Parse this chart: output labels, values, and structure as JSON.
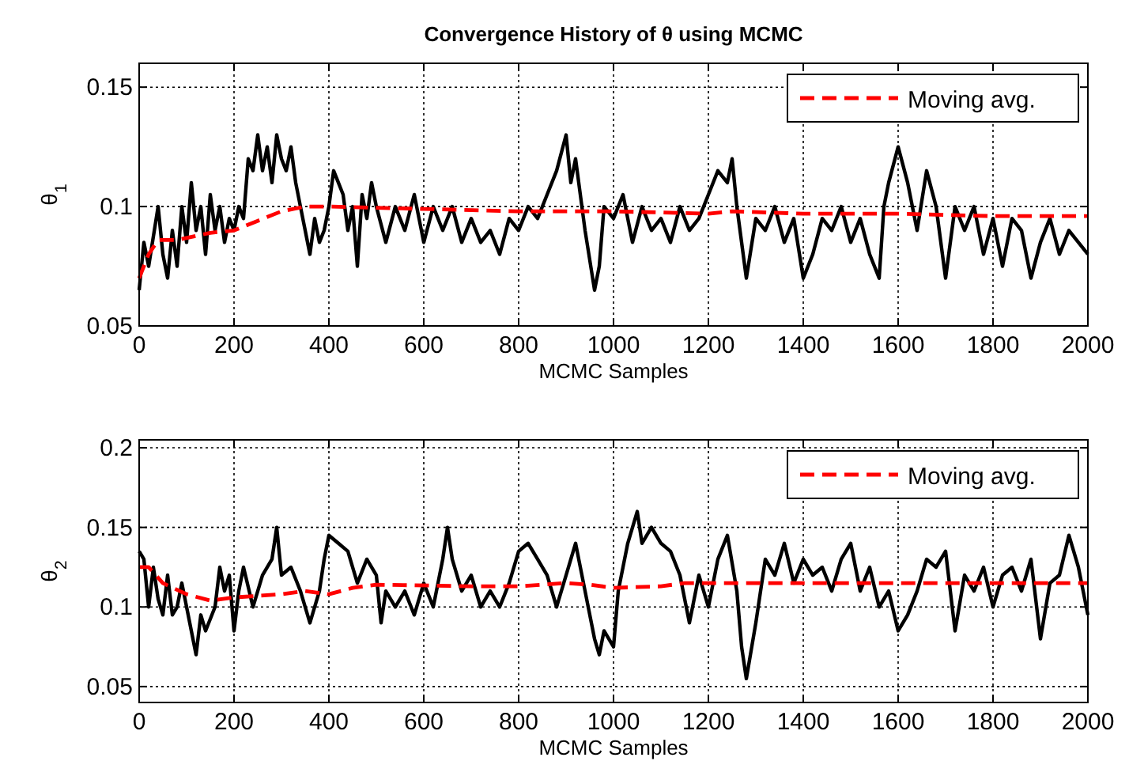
{
  "chart_data": [
    {
      "type": "line",
      "title": "Convergence History of θ using MCMC",
      "xlabel": "MCMC Samples",
      "ylabel": "θ$_{1}$",
      "xlim": [
        0,
        2000
      ],
      "xticks": [
        0,
        200,
        400,
        600,
        800,
        1000,
        1200,
        1400,
        1600,
        1800,
        2000
      ],
      "ylim": [
        0.05,
        0.16
      ],
      "yticks": [
        0.05,
        0.1,
        0.15
      ],
      "grid": true,
      "legend": "top right",
      "series": [
        {
          "color": "#000000",
          "line_style": "solid",
          "x": [
            0,
            10,
            20,
            40,
            50,
            60,
            70,
            80,
            90,
            100,
            110,
            120,
            130,
            140,
            150,
            160,
            170,
            180,
            190,
            200,
            210,
            220,
            230,
            240,
            250,
            260,
            270,
            280,
            290,
            300,
            310,
            320,
            330,
            340,
            350,
            360,
            370,
            380,
            390,
            400,
            410,
            420,
            430,
            440,
            450,
            460,
            470,
            480,
            490,
            500,
            520,
            540,
            560,
            580,
            600,
            620,
            640,
            660,
            680,
            700,
            720,
            740,
            760,
            780,
            800,
            820,
            840,
            860,
            880,
            900,
            910,
            920,
            940,
            960,
            970,
            980,
            1000,
            1020,
            1040,
            1060,
            1080,
            1100,
            1120,
            1140,
            1160,
            1180,
            1200,
            1220,
            1240,
            1250,
            1260,
            1280,
            1300,
            1320,
            1340,
            1360,
            1380,
            1400,
            1420,
            1440,
            1460,
            1480,
            1500,
            1520,
            1540,
            1560,
            1570,
            1580,
            1600,
            1620,
            1640,
            1660,
            1680,
            1700,
            1720,
            1740,
            1760,
            1780,
            1800,
            1820,
            1840,
            1860,
            1880,
            1900,
            1920,
            1940,
            1960,
            1980,
            2000
          ],
          "values": [
            0.065,
            0.085,
            0.075,
            0.1,
            0.08,
            0.07,
            0.09,
            0.075,
            0.1,
            0.085,
            0.11,
            0.09,
            0.1,
            0.08,
            0.105,
            0.09,
            0.1,
            0.085,
            0.095,
            0.09,
            0.1,
            0.095,
            0.12,
            0.115,
            0.13,
            0.115,
            0.125,
            0.11,
            0.13,
            0.12,
            0.115,
            0.125,
            0.11,
            0.1,
            0.09,
            0.08,
            0.095,
            0.085,
            0.09,
            0.1,
            0.115,
            0.11,
            0.105,
            0.09,
            0.1,
            0.075,
            0.105,
            0.095,
            0.11,
            0.1,
            0.085,
            0.1,
            0.09,
            0.105,
            0.085,
            0.1,
            0.09,
            0.1,
            0.085,
            0.095,
            0.085,
            0.09,
            0.08,
            0.095,
            0.09,
            0.1,
            0.095,
            0.105,
            0.115,
            0.13,
            0.11,
            0.12,
            0.09,
            0.065,
            0.075,
            0.1,
            0.095,
            0.105,
            0.085,
            0.1,
            0.09,
            0.095,
            0.085,
            0.1,
            0.09,
            0.095,
            0.105,
            0.115,
            0.11,
            0.12,
            0.1,
            0.07,
            0.095,
            0.09,
            0.1,
            0.085,
            0.095,
            0.07,
            0.08,
            0.095,
            0.09,
            0.1,
            0.085,
            0.095,
            0.08,
            0.07,
            0.1,
            0.11,
            0.125,
            0.11,
            0.09,
            0.115,
            0.1,
            0.07,
            0.1,
            0.09,
            0.1,
            0.08,
            0.095,
            0.075,
            0.095,
            0.09,
            0.07,
            0.085,
            0.095,
            0.08,
            0.09,
            0.085,
            0.08
          ]
        },
        {
          "name": "Moving avg.",
          "color": "#ff0000",
          "line_style": "dashed",
          "x": [
            0,
            20,
            40,
            80,
            150,
            200,
            250,
            300,
            350,
            400,
            600,
            800,
            1000,
            1200,
            1250,
            1400,
            1600,
            1800,
            2000
          ],
          "values": [
            0.07,
            0.08,
            0.086,
            0.086,
            0.089,
            0.09,
            0.094,
            0.098,
            0.1,
            0.1,
            0.099,
            0.098,
            0.098,
            0.097,
            0.098,
            0.097,
            0.097,
            0.096,
            0.096
          ]
        }
      ]
    },
    {
      "type": "line",
      "xlabel": "MCMC Samples",
      "ylabel": "θ$_{2}$",
      "xlim": [
        0,
        2000
      ],
      "xticks": [
        0,
        200,
        400,
        600,
        800,
        1000,
        1200,
        1400,
        1600,
        1800,
        2000
      ],
      "ylim": [
        0.04,
        0.205
      ],
      "yticks": [
        0.05,
        0.1,
        0.15,
        0.2
      ],
      "grid": true,
      "legend": "top right",
      "series": [
        {
          "color": "#000000",
          "line_style": "solid",
          "x": [
            0,
            10,
            20,
            30,
            40,
            50,
            60,
            70,
            80,
            90,
            100,
            110,
            120,
            130,
            140,
            160,
            170,
            180,
            190,
            200,
            210,
            220,
            240,
            260,
            280,
            290,
            300,
            320,
            340,
            360,
            380,
            390,
            400,
            420,
            440,
            460,
            480,
            500,
            510,
            520,
            540,
            560,
            580,
            600,
            620,
            640,
            650,
            660,
            680,
            700,
            720,
            740,
            760,
            780,
            800,
            820,
            840,
            860,
            880,
            900,
            920,
            940,
            960,
            970,
            980,
            1000,
            1010,
            1030,
            1050,
            1060,
            1080,
            1100,
            1120,
            1140,
            1160,
            1180,
            1200,
            1220,
            1240,
            1260,
            1270,
            1280,
            1300,
            1320,
            1340,
            1360,
            1380,
            1400,
            1420,
            1440,
            1460,
            1480,
            1500,
            1520,
            1540,
            1560,
            1580,
            1600,
            1620,
            1640,
            1660,
            1680,
            1700,
            1720,
            1740,
            1760,
            1780,
            1800,
            1820,
            1840,
            1860,
            1880,
            1900,
            1920,
            1940,
            1960,
            1980,
            2000
          ],
          "values": [
            0.135,
            0.13,
            0.1,
            0.125,
            0.105,
            0.095,
            0.12,
            0.095,
            0.1,
            0.115,
            0.1,
            0.085,
            0.07,
            0.095,
            0.085,
            0.1,
            0.125,
            0.11,
            0.12,
            0.085,
            0.11,
            0.125,
            0.1,
            0.12,
            0.13,
            0.15,
            0.12,
            0.125,
            0.11,
            0.09,
            0.11,
            0.13,
            0.145,
            0.14,
            0.135,
            0.115,
            0.13,
            0.12,
            0.09,
            0.11,
            0.1,
            0.11,
            0.095,
            0.115,
            0.1,
            0.13,
            0.15,
            0.13,
            0.11,
            0.12,
            0.1,
            0.11,
            0.1,
            0.115,
            0.135,
            0.14,
            0.13,
            0.12,
            0.1,
            0.12,
            0.14,
            0.11,
            0.08,
            0.07,
            0.085,
            0.075,
            0.11,
            0.14,
            0.16,
            0.14,
            0.15,
            0.14,
            0.135,
            0.12,
            0.09,
            0.12,
            0.1,
            0.13,
            0.145,
            0.11,
            0.075,
            0.055,
            0.09,
            0.13,
            0.12,
            0.14,
            0.115,
            0.13,
            0.12,
            0.125,
            0.11,
            0.13,
            0.14,
            0.11,
            0.125,
            0.1,
            0.11,
            0.085,
            0.095,
            0.11,
            0.13,
            0.125,
            0.135,
            0.085,
            0.12,
            0.11,
            0.125,
            0.1,
            0.12,
            0.125,
            0.11,
            0.13,
            0.08,
            0.115,
            0.12,
            0.145,
            0.125,
            0.095
          ]
        },
        {
          "name": "Moving avg.",
          "color": "#ff0000",
          "line_style": "dashed",
          "x": [
            0,
            20,
            50,
            100,
            150,
            200,
            300,
            350,
            400,
            450,
            500,
            700,
            800,
            900,
            950,
            1000,
            1100,
            1150,
            1300,
            2000
          ],
          "values": [
            0.125,
            0.125,
            0.115,
            0.108,
            0.104,
            0.106,
            0.108,
            0.11,
            0.108,
            0.112,
            0.114,
            0.113,
            0.113,
            0.115,
            0.114,
            0.112,
            0.113,
            0.115,
            0.115,
            0.115
          ]
        }
      ]
    }
  ]
}
